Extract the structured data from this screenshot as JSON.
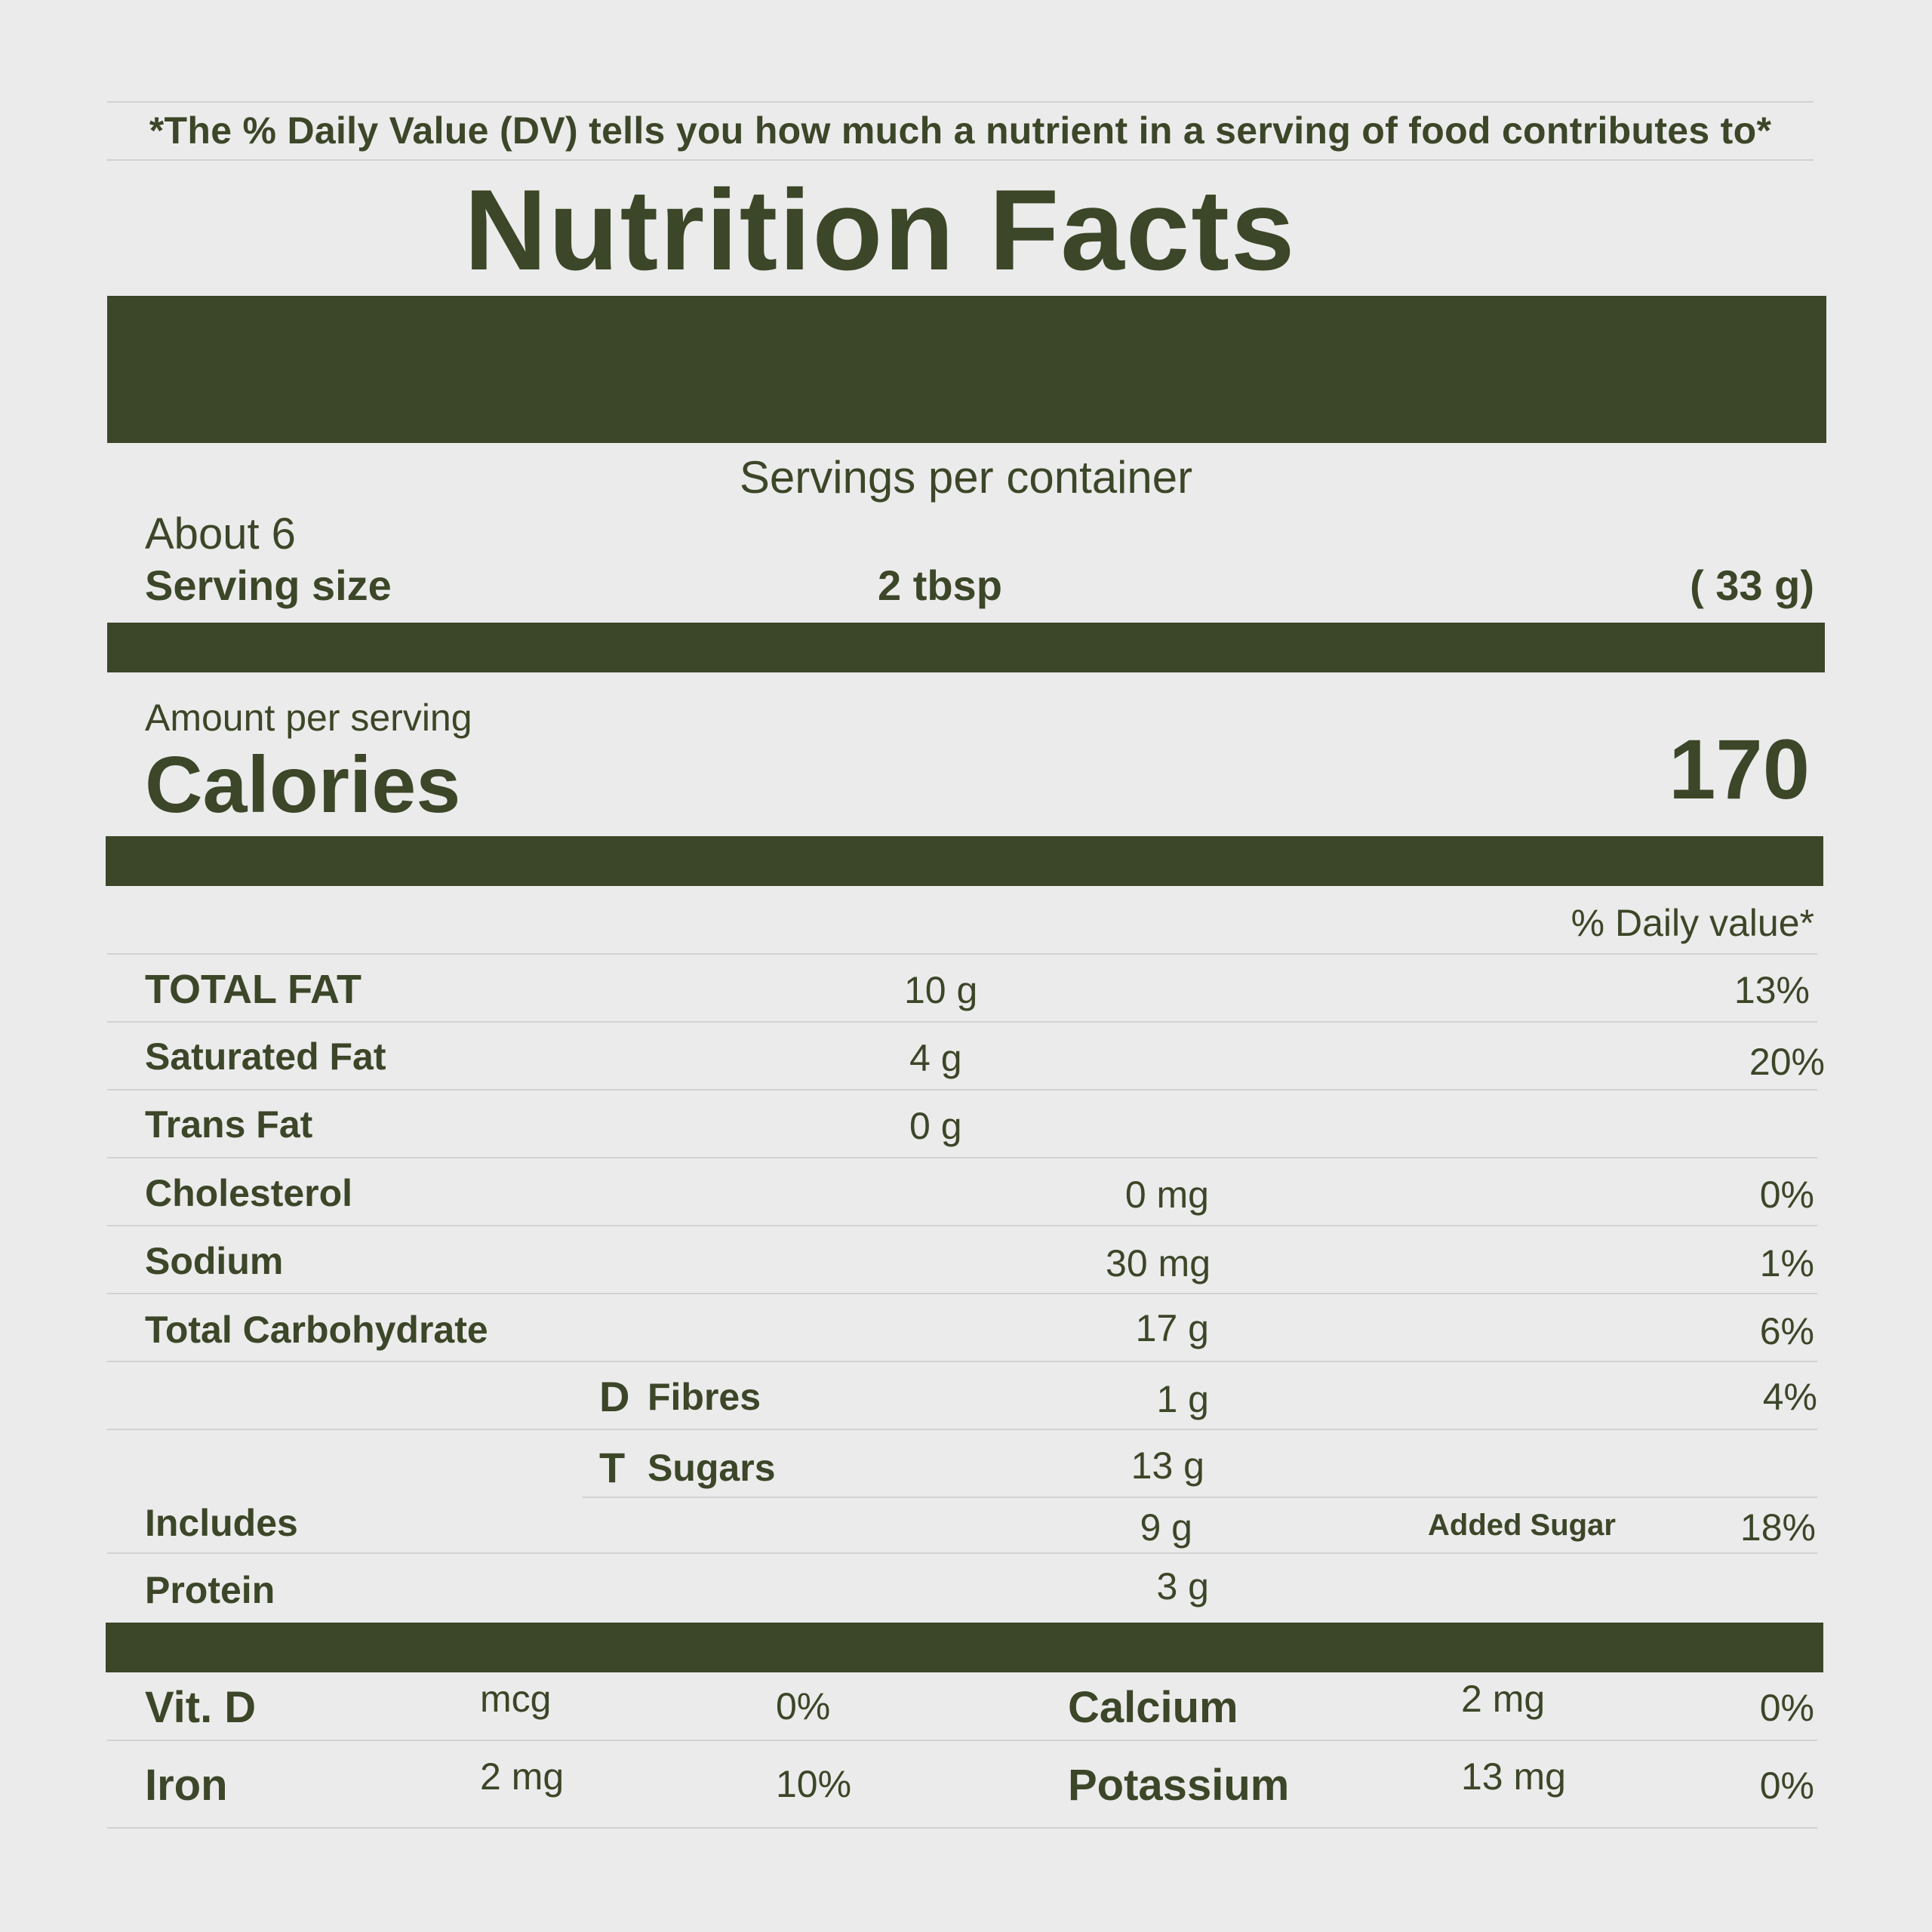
{
  "disclaimer": "*The % Daily Value (DV) tells you how much a nutrient in a serving of food contributes to*",
  "title": "Nutrition Facts",
  "servings": {
    "label": "Servings per container",
    "value": "About 6"
  },
  "serving_size": {
    "label": "Serving size",
    "amount": "2 tbsp",
    "weight": "( 33 g)"
  },
  "calories": {
    "amount_label": "Amount per serving",
    "label": "Calories",
    "value": "170"
  },
  "daily_value_header": "% Daily value*",
  "nutrients": {
    "total_fat": {
      "label": "TOTAL FAT",
      "amount": "10 g",
      "dv": "13%"
    },
    "saturated_fat": {
      "label": "Saturated Fat",
      "amount": "4 g",
      "dv": "20%"
    },
    "trans_fat": {
      "label": "Trans Fat",
      "amount": "0 g"
    },
    "cholesterol": {
      "label": "Cholesterol",
      "amount": "0 mg",
      "dv": "0%"
    },
    "sodium": {
      "label": "Sodium",
      "amount": "30 mg",
      "dv": "1%"
    },
    "total_carb": {
      "label": "Total Carbohydrate",
      "amount": "17 g",
      "dv": "6%"
    },
    "fibres": {
      "marker": "D",
      "label": "Fibres",
      "amount": "1 g",
      "dv": "4%"
    },
    "sugars": {
      "marker": "T",
      "label": "Sugars",
      "amount": "13 g"
    },
    "includes": {
      "label": "Includes",
      "amount": "9 g",
      "note": "Added Sugar",
      "dv": "18%"
    },
    "protein": {
      "label": "Protein",
      "amount": "3 g"
    }
  },
  "minerals": {
    "vit_d": {
      "label": "Vit. D",
      "amount": "mcg",
      "dv": "0%"
    },
    "calcium": {
      "label": "Calcium",
      "amount": "2 mg",
      "dv": "0%"
    },
    "iron": {
      "label": "Iron",
      "amount": "2 mg",
      "dv": "10%"
    },
    "potassium": {
      "label": "Potassium",
      "amount": "13 mg",
      "dv": "0%"
    }
  },
  "colors": {
    "background": "#ebebeb",
    "primary": "#3c4628",
    "divider": "#d2d2d2"
  }
}
